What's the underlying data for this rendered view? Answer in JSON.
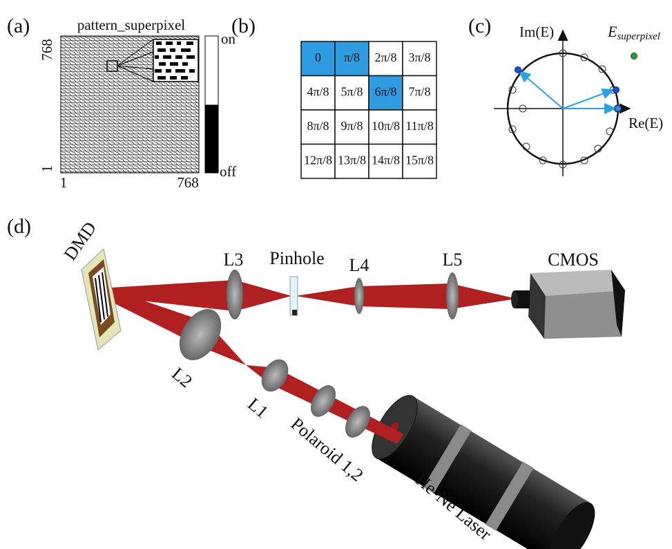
{
  "panels": {
    "a": {
      "label": "(a)",
      "title": "pattern_superpixel",
      "y_top": "768",
      "y_bottom": "1",
      "x_left": "1",
      "x_right": "768",
      "on": "on",
      "off": "off"
    },
    "b": {
      "label": "(b)",
      "cells": [
        [
          "0",
          "π/8",
          "2π/8",
          "3π/8"
        ],
        [
          "4π/8",
          "5π/8",
          "6π/8",
          "7π/8"
        ],
        [
          "8π/8",
          "9π/8",
          "10π/8",
          "11π/8"
        ],
        [
          "12π/8",
          "13π/8",
          "14π/8",
          "15π/8"
        ]
      ]
    },
    "c": {
      "label": "(c)",
      "im_axis": "Im(E)",
      "re_axis": "Re(E)",
      "e_superpixel": {
        "base": "E",
        "subscript": "superpixel"
      }
    },
    "d": {
      "label": "(d)",
      "dmd": "DMD",
      "l3": "L3",
      "pinhole": "Pinhole",
      "l4": "L4",
      "l5": "L5",
      "cmos": "CMOS",
      "l2": "L2",
      "l1": "L1",
      "polaroid": "Polaroid 1,2",
      "laser": "He-Ne Laser"
    }
  }
}
